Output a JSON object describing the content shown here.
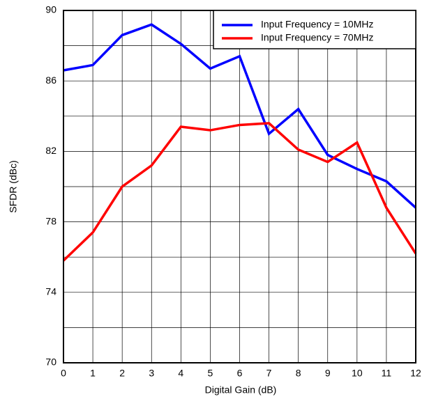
{
  "chart_data": {
    "type": "line",
    "xlabel": "Digital Gain (dB)",
    "ylabel": "SFDR (dBc)",
    "x": [
      0,
      1,
      2,
      3,
      4,
      5,
      6,
      7,
      8,
      9,
      10,
      11,
      12
    ],
    "series": [
      {
        "name": "Input Frequency = 10MHz",
        "color": "#0000ff",
        "values": [
          86.6,
          86.9,
          88.6,
          89.2,
          88.1,
          86.7,
          87.4,
          83.0,
          84.4,
          81.8,
          81.0,
          80.3,
          78.8
        ]
      },
      {
        "name": "Input Frequency = 70MHz",
        "color": "#ff0000",
        "values": [
          75.8,
          77.4,
          80.0,
          81.2,
          83.4,
          83.2,
          83.5,
          83.6,
          82.1,
          81.4,
          82.5,
          78.8,
          76.2
        ]
      }
    ],
    "xlim": [
      0,
      12
    ],
    "xticks": [
      0,
      1,
      2,
      3,
      4,
      5,
      6,
      7,
      8,
      9,
      10,
      11,
      12
    ],
    "ylim": [
      70,
      90
    ],
    "yticks": [
      70,
      74,
      78,
      82,
      86,
      90
    ],
    "y_minor_ticks": [
      72,
      76,
      80,
      84,
      88
    ],
    "grid": true,
    "legend": "upper right"
  }
}
